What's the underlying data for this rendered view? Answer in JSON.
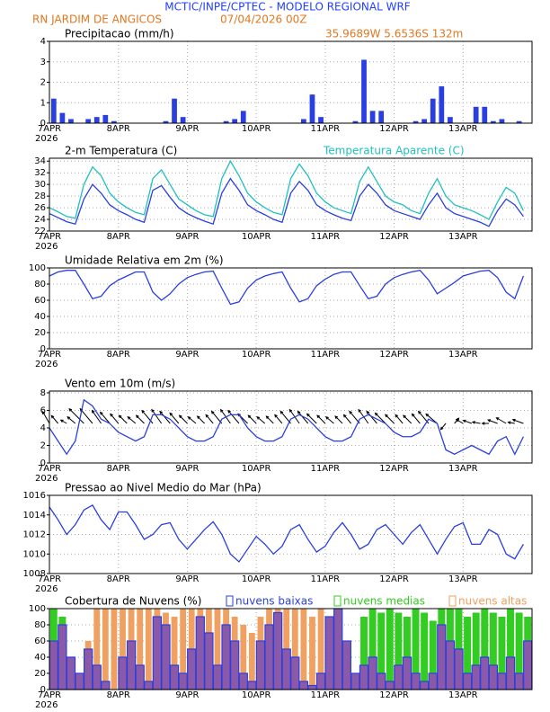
{
  "header": {
    "title": "MCTIC/INPE/CPTEC - MODELO REGIONAL WRF",
    "location": "RN JARDIM DE ANGICOS",
    "run": "07/04/2026 00Z",
    "coords": "35.9689W 5.6536S 132m"
  },
  "chart_data": [
    {
      "type": "bar",
      "title": "Precipitacao (mm/h)",
      "color": "#2a3fe0",
      "xtick_labels": [
        "7APR",
        "8APR",
        "9APR",
        "10APR",
        "11APR",
        "12APR",
        "13APR"
      ],
      "year_label": "2026",
      "values": [
        1.2,
        0.5,
        0.2,
        0,
        0.2,
        0.3,
        0.4,
        0.1,
        0,
        0,
        0,
        0,
        0,
        0.1,
        1.2,
        0.3,
        0,
        0,
        0,
        0,
        0.1,
        0.2,
        0.6,
        0,
        0,
        0,
        0,
        0,
        0,
        0.2,
        1.4,
        0.3,
        0,
        0,
        0,
        0.1,
        3.1,
        0.6,
        0.6,
        0,
        0,
        0,
        0.1,
        0.2,
        1.2,
        1.8,
        0.3,
        0,
        0,
        0.8,
        0.8,
        0.1,
        0.2,
        0,
        0.1,
        0
      ],
      "ylim": [
        0,
        4
      ],
      "yticks": [
        0,
        1,
        2,
        3,
        4
      ],
      "grid": true
    },
    {
      "type": "line",
      "xtick_labels": [
        "7APR",
        "8APR",
        "9APR",
        "10APR",
        "11APR",
        "12APR",
        "13APR"
      ],
      "year_label": "2026",
      "series": [
        {
          "name": "2-m Temperatura (C)",
          "color": "#2a3fe0",
          "values": [
            25.0,
            24.3,
            23.6,
            23.2,
            27.5,
            30.0,
            28.5,
            26.5,
            25.5,
            24.8,
            24.0,
            23.5,
            29.0,
            29.8,
            27.8,
            26.0,
            25.0,
            24.3,
            23.7,
            23.2,
            28.5,
            31.0,
            29.0,
            26.5,
            25.5,
            24.8,
            24.0,
            23.5,
            28.5,
            30.5,
            29.0,
            26.5,
            25.5,
            24.8,
            24.2,
            23.8,
            28.0,
            30.0,
            28.5,
            26.5,
            25.5,
            25.0,
            24.5,
            24.0,
            26.5,
            28.5,
            26.0,
            25.0,
            24.5,
            24.0,
            23.5,
            22.8,
            25.5,
            27.5,
            26.5,
            24.5
          ]
        },
        {
          "name": "Temperatura Aparente (C)",
          "color": "#20c0c0",
          "values": [
            26.0,
            25.3,
            24.5,
            24.2,
            30.0,
            33.0,
            31.5,
            28.5,
            27.0,
            26.0,
            25.2,
            24.8,
            31.0,
            32.5,
            30.0,
            27.5,
            26.5,
            25.5,
            24.8,
            24.5,
            31.0,
            34.0,
            31.5,
            28.5,
            27.0,
            26.0,
            25.2,
            24.8,
            31.0,
            33.5,
            31.5,
            28.5,
            27.0,
            26.0,
            25.5,
            25.0,
            30.5,
            33.0,
            30.5,
            28.0,
            27.0,
            26.5,
            25.5,
            25.0,
            28.5,
            31.0,
            28.0,
            26.5,
            26.0,
            25.5,
            24.8,
            24.0,
            27.0,
            29.5,
            28.5,
            25.5
          ]
        }
      ],
      "ylim": [
        22,
        34.5
      ],
      "yticks": [
        22,
        24,
        26,
        28,
        30,
        32,
        34
      ],
      "grid": true
    },
    {
      "type": "line",
      "title": "Umidade Relativa em 2m (%)",
      "xtick_labels": [
        "7APR",
        "8APR",
        "9APR",
        "10APR",
        "11APR",
        "12APR",
        "13APR"
      ],
      "year_label": "2026",
      "series": [
        {
          "color": "#2a3fe0",
          "values": [
            90,
            95,
            97,
            97,
            80,
            62,
            65,
            78,
            85,
            90,
            95,
            95,
            70,
            60,
            68,
            80,
            88,
            92,
            95,
            96,
            75,
            55,
            58,
            75,
            85,
            90,
            93,
            95,
            75,
            58,
            62,
            78,
            86,
            92,
            95,
            95,
            78,
            62,
            65,
            80,
            88,
            92,
            95,
            97,
            85,
            68,
            75,
            82,
            90,
            93,
            96,
            97,
            88,
            70,
            62,
            90
          ]
        }
      ],
      "ylim": [
        0,
        100
      ],
      "yticks": [
        0,
        20,
        40,
        60,
        80,
        100
      ],
      "grid": true
    },
    {
      "type": "wind",
      "title": "Vento em 10m (m/s)",
      "xtick_labels": [
        "7APR",
        "8APR",
        "9APR",
        "10APR",
        "11APR",
        "12APR",
        "13APR"
      ],
      "year_label": "2026",
      "series": [
        {
          "color": "#2a3fe0",
          "values": [
            4.0,
            2.5,
            1.0,
            2.5,
            7.2,
            6.5,
            5.0,
            4.5,
            3.5,
            3.0,
            2.5,
            3.0,
            5.5,
            5.5,
            5.0,
            4.0,
            3.0,
            2.5,
            2.5,
            3.0,
            5.0,
            5.5,
            5.5,
            4.0,
            3.0,
            2.5,
            2.5,
            3.0,
            5.0,
            5.5,
            5.0,
            4.0,
            3.0,
            2.5,
            2.5,
            3.0,
            5.0,
            5.5,
            5.0,
            4.5,
            3.5,
            3.0,
            3.0,
            3.5,
            5.0,
            4.5,
            1.5,
            1.0,
            1.5,
            2.0,
            1.5,
            1.0,
            2.5,
            3.0,
            1.0,
            3.0
          ]
        }
      ],
      "directions": [
        330,
        320,
        300,
        310,
        315,
        320,
        325,
        320,
        320,
        315,
        310,
        315,
        320,
        325,
        320,
        320,
        315,
        310,
        315,
        320,
        320,
        325,
        320,
        315,
        315,
        310,
        315,
        320,
        320,
        325,
        320,
        315,
        315,
        310,
        315,
        320,
        320,
        325,
        320,
        315,
        315,
        320,
        315,
        320,
        320,
        310,
        220,
        40,
        300,
        290,
        280,
        270,
        290,
        300,
        280,
        290
      ],
      "arrow_color": "#000000",
      "ylim": [
        0,
        8.2
      ],
      "yticks": [
        0,
        2,
        4,
        6,
        8
      ],
      "grid": true
    },
    {
      "type": "line",
      "title": "Pressao ao Nivel Medio do Mar (hPa)",
      "xtick_labels": [
        "7APR",
        "8APR",
        "9APR",
        "10APR",
        "11APR",
        "12APR",
        "13APR"
      ],
      "year_label": "2026",
      "series": [
        {
          "color": "#2a3fe0",
          "values": [
            1014.8,
            1013.5,
            1012.0,
            1013.0,
            1014.5,
            1015.0,
            1013.5,
            1012.5,
            1014.3,
            1014.3,
            1013.0,
            1011.5,
            1012.0,
            1013.0,
            1013.2,
            1011.5,
            1010.5,
            1011.5,
            1012.5,
            1013.3,
            1012.0,
            1010.0,
            1009.2,
            1010.5,
            1011.8,
            1011.0,
            1010.0,
            1010.8,
            1012.5,
            1013.0,
            1011.5,
            1010.2,
            1010.8,
            1012.2,
            1013.2,
            1012.0,
            1010.5,
            1011.0,
            1012.5,
            1013.0,
            1012.0,
            1011.0,
            1012.2,
            1013.0,
            1011.5,
            1010.0,
            1011.5,
            1012.8,
            1013.2,
            1011.0,
            1011.0,
            1012.5,
            1012.0,
            1010.0,
            1009.5,
            1011.0
          ]
        }
      ],
      "ylim": [
        1008,
        1016
      ],
      "yticks": [
        1008,
        1010,
        1012,
        1014,
        1016
      ],
      "grid": true
    },
    {
      "type": "bar",
      "title": "Cobertura de Nuvens (%)",
      "xtick_labels": [
        "7APR",
        "8APR",
        "9APR",
        "10APR",
        "11APR",
        "12APR",
        "13APR"
      ],
      "year_label": "2026",
      "series": [
        {
          "name": "nuvens baixas",
          "color": "#2a3fe0",
          "values": [
            60,
            80,
            40,
            20,
            50,
            30,
            10,
            0,
            40,
            60,
            30,
            10,
            90,
            80,
            30,
            20,
            50,
            90,
            70,
            30,
            80,
            60,
            20,
            10,
            60,
            80,
            95,
            50,
            40,
            10,
            5,
            20,
            90,
            100,
            60,
            20,
            30,
            40,
            20,
            10,
            30,
            40,
            20,
            10,
            20,
            80,
            60,
            50,
            20,
            30,
            40,
            30,
            20,
            40,
            20,
            60
          ]
        },
        {
          "name": "nuvens medias",
          "color": "#33cc22",
          "values": [
            100,
            90,
            40,
            0,
            0,
            0,
            0,
            0,
            0,
            0,
            0,
            0,
            0,
            0,
            0,
            0,
            0,
            0,
            0,
            0,
            0,
            0,
            0,
            0,
            0,
            0,
            0,
            0,
            0,
            0,
            0,
            0,
            0,
            0,
            0,
            0,
            90,
            100,
            95,
            100,
            95,
            90,
            100,
            95,
            85,
            100,
            100,
            100,
            90,
            95,
            100,
            95,
            90,
            100,
            95,
            90
          ]
        },
        {
          "name": "nuvens altas",
          "color": "#f0a060",
          "values": [
            0,
            0,
            0,
            20,
            60,
            100,
            100,
            100,
            100,
            100,
            100,
            100,
            100,
            95,
            90,
            100,
            100,
            100,
            100,
            100,
            100,
            90,
            80,
            70,
            90,
            100,
            100,
            100,
            100,
            100,
            90,
            100,
            80,
            60,
            40,
            10,
            0,
            0,
            0,
            0,
            0,
            0,
            0,
            0,
            0,
            0,
            10,
            30,
            0,
            0,
            0,
            0,
            0,
            0,
            0,
            0
          ]
        }
      ],
      "ylim": [
        0,
        100
      ],
      "yticks": [
        0,
        20,
        40,
        60,
        80,
        100
      ],
      "grid": true
    }
  ]
}
